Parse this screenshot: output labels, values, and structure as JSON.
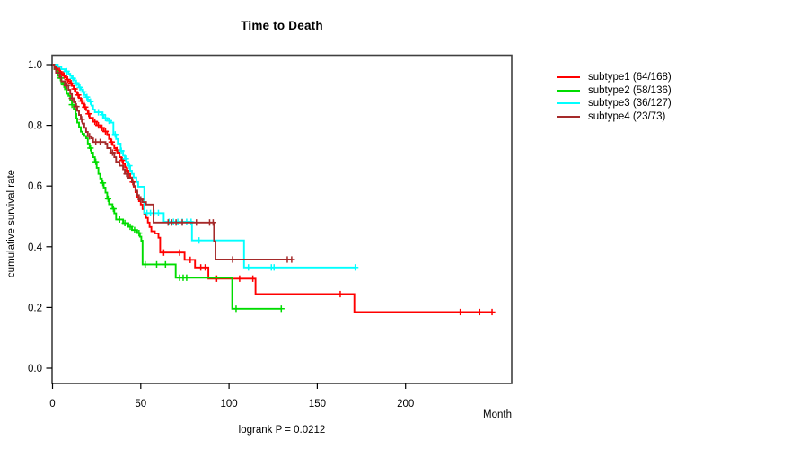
{
  "chart_data": {
    "type": "line",
    "subtype": "kaplan-meier-step",
    "title": "Time to Death",
    "ylabel": "cumulative survival rate",
    "xlabel": "Month",
    "footer": "logrank P = 0.0212",
    "xlim": [
      0,
      260
    ],
    "ylim": [
      0.0,
      1.0
    ],
    "x_ticks": [
      0,
      50,
      100,
      150,
      200
    ],
    "y_ticks": [
      "0.0",
      "0.2",
      "0.4",
      "0.6",
      "0.8",
      "1.0"
    ],
    "grid": false,
    "legend_position": "right-outside",
    "axis_color": "#404040",
    "series": [
      {
        "name": "subtype1",
        "label": "subtype1 (64/168)",
        "color": "#ff0000",
        "events": 64,
        "n": 168,
        "end_time": 249,
        "points": [
          [
            0,
            1
          ],
          [
            1,
            0.994
          ],
          [
            2,
            0.988
          ],
          [
            3,
            0.982
          ],
          [
            4,
            0.976
          ],
          [
            5,
            0.97
          ],
          [
            6,
            0.964
          ],
          [
            7,
            0.958
          ],
          [
            8,
            0.951
          ],
          [
            9,
            0.945
          ],
          [
            10,
            0.939
          ],
          [
            11,
            0.93
          ],
          [
            12,
            0.92
          ],
          [
            13,
            0.91
          ],
          [
            14,
            0.9
          ],
          [
            15,
            0.89
          ],
          [
            16,
            0.88
          ],
          [
            17,
            0.872
          ],
          [
            18,
            0.86
          ],
          [
            19,
            0.85
          ],
          [
            20,
            0.838
          ],
          [
            21,
            0.825
          ],
          [
            23,
            0.812
          ],
          [
            25,
            0.8
          ],
          [
            27,
            0.792
          ],
          [
            29,
            0.78
          ],
          [
            31,
            0.77
          ],
          [
            32,
            0.755
          ],
          [
            33,
            0.745
          ],
          [
            34,
            0.735
          ],
          [
            35,
            0.725
          ],
          [
            36,
            0.718
          ],
          [
            37,
            0.71
          ],
          [
            38,
            0.695
          ],
          [
            39,
            0.685
          ],
          [
            40,
            0.673
          ],
          [
            41,
            0.662
          ],
          [
            42,
            0.651
          ],
          [
            43,
            0.64
          ],
          [
            44,
            0.628
          ],
          [
            45,
            0.613
          ],
          [
            46,
            0.598
          ],
          [
            47,
            0.58
          ],
          [
            48,
            0.563
          ],
          [
            49,
            0.55
          ],
          [
            50,
            0.539
          ],
          [
            51,
            0.524
          ],
          [
            52,
            0.509
          ],
          [
            53,
            0.495
          ],
          [
            54,
            0.48
          ],
          [
            55,
            0.465
          ],
          [
            56,
            0.451
          ],
          [
            58,
            0.444
          ],
          [
            60,
            0.43
          ],
          [
            61,
            0.381
          ],
          [
            74.8,
            0.357
          ],
          [
            80.7,
            0.332
          ],
          [
            88.3,
            0.295
          ],
          [
            115,
            0.244
          ],
          [
            171,
            0.185
          ]
        ],
        "censor_times": [
          2.5,
          4.5,
          6.5,
          8.5,
          10.5,
          12.5,
          14.5,
          16.5,
          18.5,
          20.5,
          24,
          26,
          28,
          30,
          33.5,
          36.5,
          39.5,
          42.5,
          45.5,
          63,
          72,
          78,
          84,
          86.5,
          93,
          106,
          113.5,
          163,
          231,
          242,
          249
        ]
      },
      {
        "name": "subtype2",
        "label": "subtype2 (58/136)",
        "color": "#00dc00",
        "events": 58,
        "n": 136,
        "end_time": 129.6,
        "points": [
          [
            0,
            1
          ],
          [
            1,
            0.985
          ],
          [
            2,
            0.978
          ],
          [
            3,
            0.963
          ],
          [
            4,
            0.956
          ],
          [
            5,
            0.941
          ],
          [
            6,
            0.934
          ],
          [
            7,
            0.919
          ],
          [
            8,
            0.904
          ],
          [
            9,
            0.897
          ],
          [
            10,
            0.882
          ],
          [
            11,
            0.868
          ],
          [
            12,
            0.853
          ],
          [
            13,
            0.838
          ],
          [
            13.5,
            0.823
          ],
          [
            14,
            0.809
          ],
          [
            15,
            0.794
          ],
          [
            16,
            0.779
          ],
          [
            17,
            0.772
          ],
          [
            18,
            0.765
          ],
          [
            19,
            0.757
          ],
          [
            20,
            0.74
          ],
          [
            21,
            0.725
          ],
          [
            22,
            0.71
          ],
          [
            23,
            0.695
          ],
          [
            24,
            0.68
          ],
          [
            25,
            0.66
          ],
          [
            26,
            0.64
          ],
          [
            27,
            0.625
          ],
          [
            28,
            0.61
          ],
          [
            29,
            0.595
          ],
          [
            30,
            0.578
          ],
          [
            31,
            0.558
          ],
          [
            32,
            0.54
          ],
          [
            34,
            0.525
          ],
          [
            35,
            0.51
          ],
          [
            36,
            0.49
          ],
          [
            40,
            0.478
          ],
          [
            43,
            0.466
          ],
          [
            45,
            0.455
          ],
          [
            48,
            0.445
          ],
          [
            49.5,
            0.433
          ],
          [
            50.3,
            0.42
          ],
          [
            51,
            0.342
          ],
          [
            69.8,
            0.298
          ],
          [
            101.8,
            0.196
          ]
        ],
        "censor_times": [
          4.5,
          6.5,
          11,
          21.5,
          24.5,
          28.5,
          31.5,
          34.5,
          38,
          41,
          44,
          46.5,
          49,
          52.5,
          59,
          64,
          72,
          74,
          76,
          104,
          129.6
        ]
      },
      {
        "name": "subtype3",
        "label": "subtype3 (36/127)",
        "color": "#00ffff",
        "events": 36,
        "n": 127,
        "end_time": 171.5,
        "points": [
          [
            0,
            1
          ],
          [
            3,
            0.993
          ],
          [
            5,
            0.985
          ],
          [
            7,
            0.978
          ],
          [
            9,
            0.97
          ],
          [
            10,
            0.963
          ],
          [
            11,
            0.955
          ],
          [
            12,
            0.948
          ],
          [
            13,
            0.94
          ],
          [
            14,
            0.933
          ],
          [
            15,
            0.925
          ],
          [
            16,
            0.918
          ],
          [
            17,
            0.91
          ],
          [
            18,
            0.9
          ],
          [
            19,
            0.893
          ],
          [
            20,
            0.885
          ],
          [
            21,
            0.878
          ],
          [
            22,
            0.865
          ],
          [
            23,
            0.852
          ],
          [
            24,
            0.843
          ],
          [
            28,
            0.835
          ],
          [
            29,
            0.824
          ],
          [
            31,
            0.815
          ],
          [
            33,
            0.809
          ],
          [
            34.5,
            0.77
          ],
          [
            36,
            0.755
          ],
          [
            37,
            0.74
          ],
          [
            38.6,
            0.716
          ],
          [
            40,
            0.7
          ],
          [
            41,
            0.69
          ],
          [
            42,
            0.68
          ],
          [
            43,
            0.667
          ],
          [
            44,
            0.651
          ],
          [
            45,
            0.64
          ],
          [
            46,
            0.628
          ],
          [
            47.5,
            0.613
          ],
          [
            48.5,
            0.598
          ],
          [
            52,
            0.511
          ],
          [
            63,
            0.482
          ],
          [
            79,
            0.421
          ],
          [
            108.5,
            0.332
          ]
        ],
        "censor_times": [
          8,
          11.5,
          13.5,
          15.5,
          17.5,
          19.5,
          21.5,
          26,
          28.5,
          30,
          32,
          35.5,
          39,
          41.5,
          43.5,
          53.5,
          55.5,
          57.5,
          60,
          66,
          68.5,
          71,
          73.5,
          76,
          78.5,
          83,
          111,
          124,
          125.5,
          171.5
        ]
      },
      {
        "name": "subtype4",
        "label": "subtype4 (23/73)",
        "color": "#a52a2a",
        "events": 23,
        "n": 73,
        "end_time": 135.5,
        "points": [
          [
            0,
            1
          ],
          [
            1,
            0.986
          ],
          [
            2,
            0.973
          ],
          [
            4,
            0.959
          ],
          [
            5,
            0.945
          ],
          [
            7,
            0.931
          ],
          [
            9,
            0.917
          ],
          [
            10,
            0.903
          ],
          [
            11,
            0.889
          ],
          [
            12,
            0.876
          ],
          [
            13,
            0.862
          ],
          [
            14,
            0.848
          ],
          [
            15,
            0.834
          ],
          [
            16,
            0.82
          ],
          [
            17,
            0.806
          ],
          [
            18,
            0.792
          ],
          [
            19,
            0.778
          ],
          [
            20,
            0.764
          ],
          [
            22,
            0.757
          ],
          [
            23,
            0.745
          ],
          [
            30,
            0.74
          ],
          [
            31,
            0.725
          ],
          [
            33,
            0.71
          ],
          [
            35,
            0.695
          ],
          [
            36,
            0.68
          ],
          [
            38,
            0.667
          ],
          [
            40,
            0.655
          ],
          [
            41,
            0.64
          ],
          [
            43,
            0.627
          ],
          [
            45,
            0.612
          ],
          [
            46,
            0.6
          ],
          [
            47,
            0.585
          ],
          [
            48,
            0.57
          ],
          [
            49,
            0.556
          ],
          [
            51,
            0.547
          ],
          [
            53,
            0.539
          ],
          [
            57.2,
            0.48
          ],
          [
            91.5,
            0.418
          ],
          [
            92.3,
            0.358
          ]
        ],
        "censor_times": [
          8,
          11,
          13.5,
          16.5,
          21,
          24.5,
          27,
          34,
          42,
          50,
          65.5,
          67.5,
          70,
          73.5,
          81.5,
          89,
          91,
          102,
          133,
          135.5
        ]
      }
    ]
  }
}
